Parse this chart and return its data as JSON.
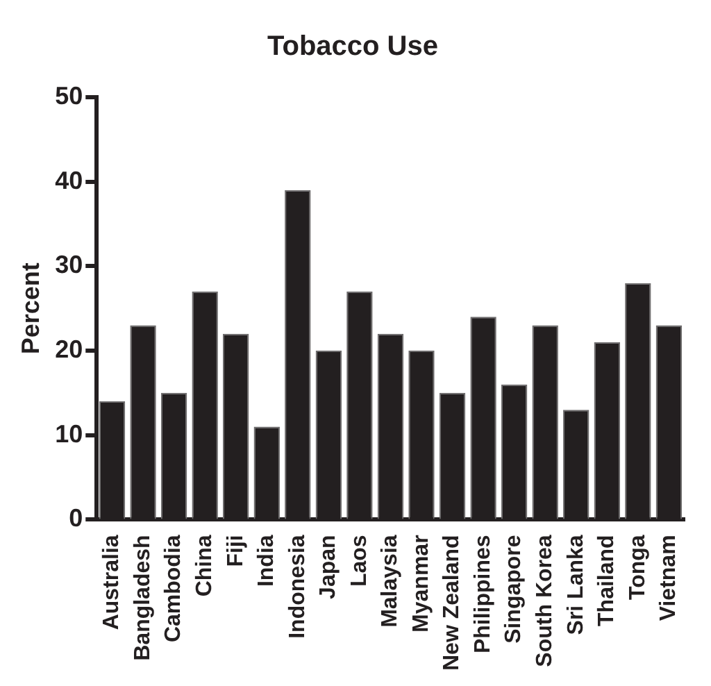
{
  "chart_data": {
    "type": "bar",
    "title": "Tobacco Use",
    "ylabel": "Percent",
    "categories": [
      "Australia",
      "Bangladesh",
      "Cambodia",
      "China",
      "Fiji",
      "India",
      "Indonesia",
      "Japan",
      "Laos",
      "Malaysia",
      "Myanmar",
      "New Zealand",
      "Philippines",
      "Singapore",
      "South Korea",
      "Sri Lanka",
      "Thailand",
      "Tonga",
      "Vietnam"
    ],
    "values": [
      14,
      23,
      15,
      27,
      22,
      11,
      39,
      20,
      27,
      22,
      20,
      15,
      24,
      16,
      23,
      13,
      21,
      28,
      23
    ],
    "color": "#231f20",
    "ylim": [
      0,
      50
    ],
    "yticks": [
      0,
      10,
      20,
      30,
      40,
      50
    ],
    "grid": false,
    "legend": false
  }
}
